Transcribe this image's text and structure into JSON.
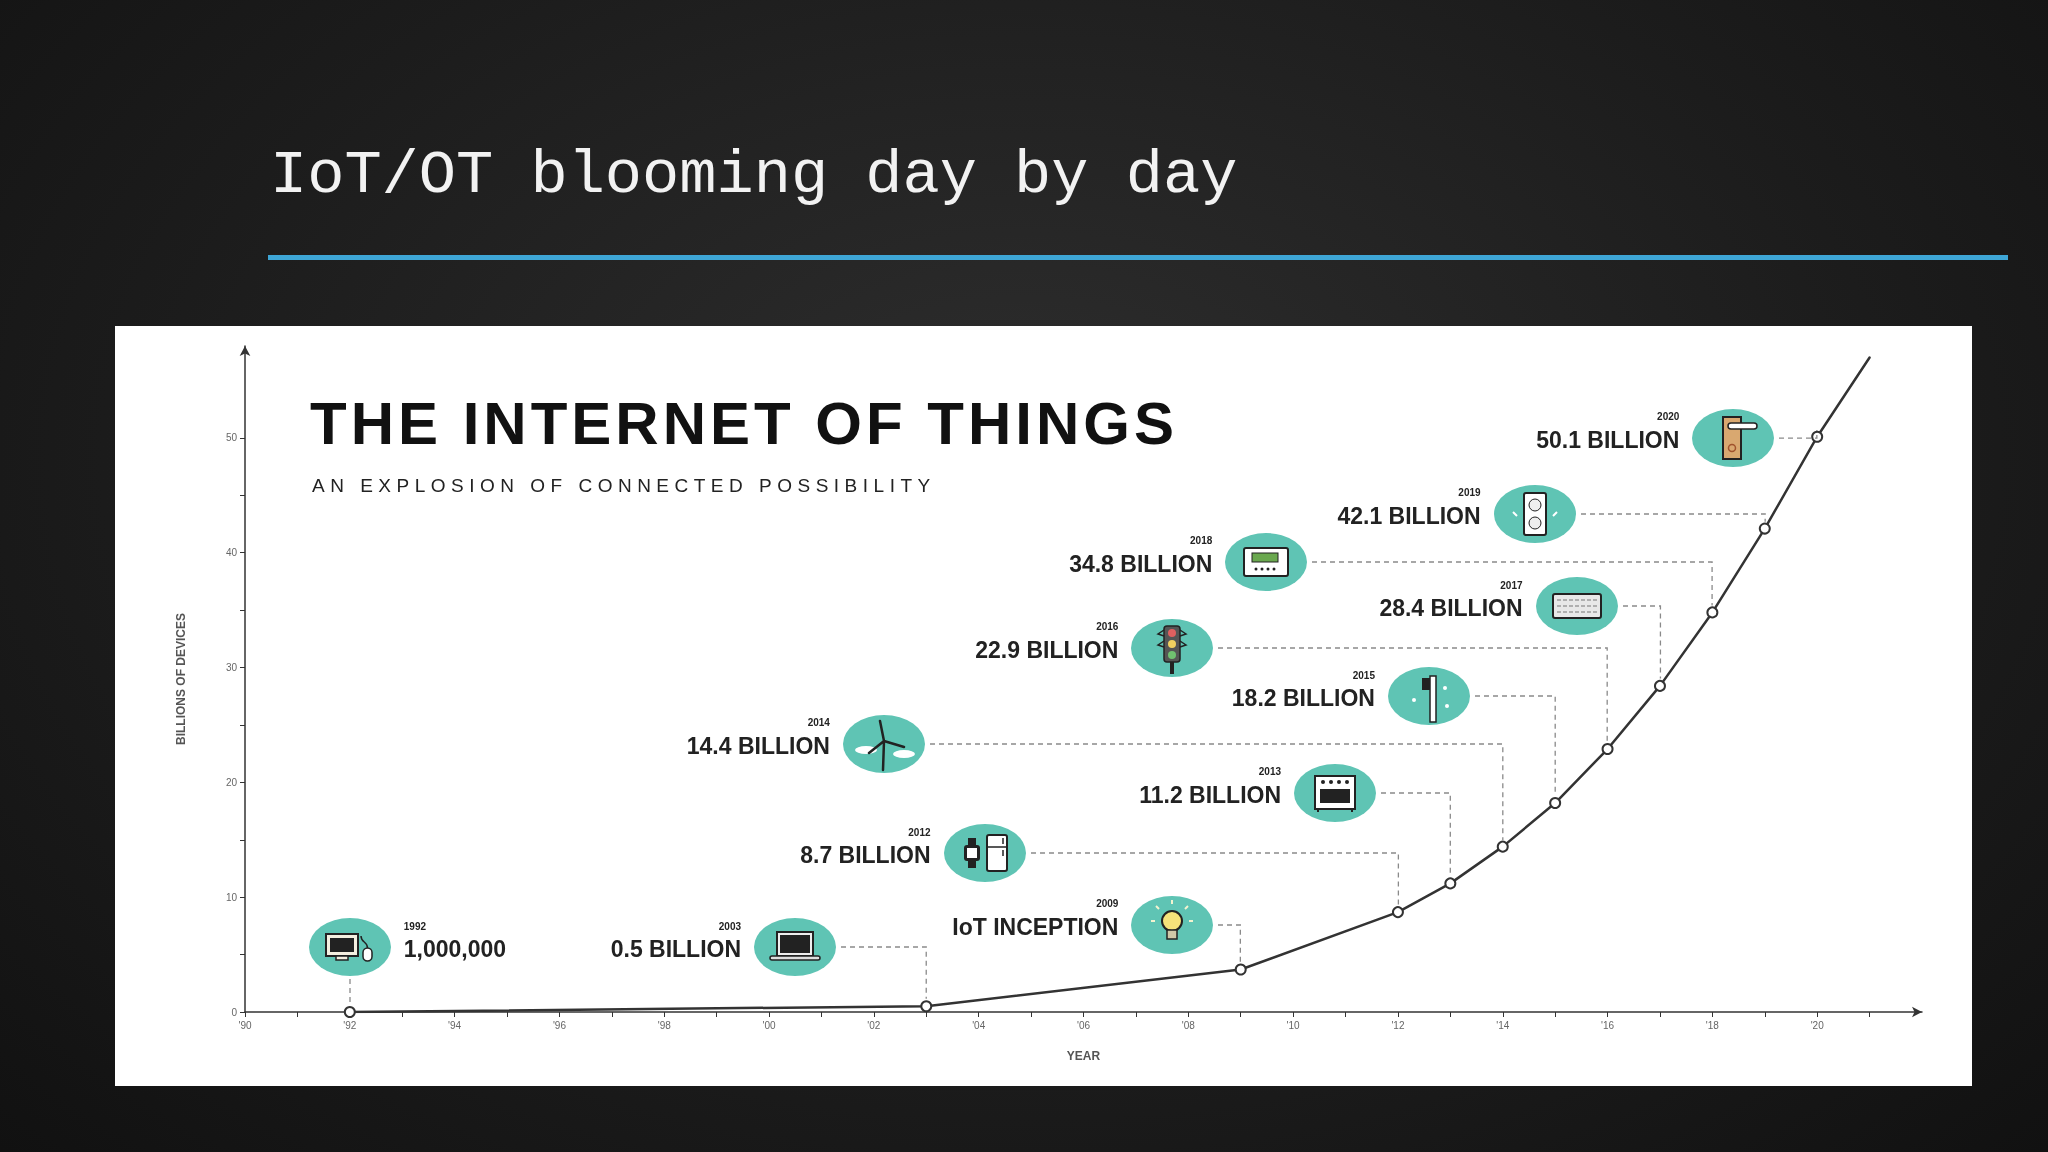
{
  "chart_data": {
    "type": "line",
    "title": "THE INTERNET OF THINGS",
    "subtitle": "AN EXPLOSION OF CONNECTED POSSIBILITY",
    "xlabel": "YEAR",
    "ylabel": "BILLIONS OF DEVICES",
    "xlim": [
      1990,
      2022
    ],
    "xticks": [
      {
        "value": 1990,
        "label": "'90"
      },
      {
        "value": 1991,
        "label": null
      },
      {
        "value": 1992,
        "label": "'92"
      },
      {
        "value": 1993,
        "label": null
      },
      {
        "value": 1994,
        "label": "'94"
      },
      {
        "value": 1995,
        "label": null
      },
      {
        "value": 1996,
        "label": "'96"
      },
      {
        "value": 1997,
        "label": null
      },
      {
        "value": 1998,
        "label": "'98"
      },
      {
        "value": 1999,
        "label": null
      },
      {
        "value": 2000,
        "label": "'00"
      },
      {
        "value": 2001,
        "label": null
      },
      {
        "value": 2002,
        "label": "'02"
      },
      {
        "value": 2003,
        "label": null
      },
      {
        "value": 2004,
        "label": "'04"
      },
      {
        "value": 2005,
        "label": null
      },
      {
        "value": 2006,
        "label": "'06"
      },
      {
        "value": 2007,
        "label": null
      },
      {
        "value": 2008,
        "label": "'08"
      },
      {
        "value": 2009,
        "label": null
      },
      {
        "value": 2010,
        "label": "'10"
      },
      {
        "value": 2011,
        "label": null
      },
      {
        "value": 2012,
        "label": "'12"
      },
      {
        "value": 2013,
        "label": null
      },
      {
        "value": 2014,
        "label": "'14"
      },
      {
        "value": 2015,
        "label": null
      },
      {
        "value": 2016,
        "label": "'16"
      },
      {
        "value": 2017,
        "label": null
      },
      {
        "value": 2018,
        "label": "'18"
      },
      {
        "value": 2019,
        "label": null
      },
      {
        "value": 2020,
        "label": "'20"
      },
      {
        "value": 2021,
        "label": null
      }
    ],
    "ylim": [
      0,
      58
    ],
    "yticks": [
      0,
      {
        "value": 5,
        "label": null
      },
      10,
      {
        "value": 15,
        "label": null
      },
      20,
      {
        "value": 25,
        "label": null
      },
      30,
      {
        "value": 35,
        "label": null
      },
      40,
      {
        "value": 45,
        "label": null
      },
      50
    ],
    "marker": "circle",
    "line_style": "solid",
    "series": [
      {
        "color": "#333333",
        "x": [
          1992,
          2003,
          2009,
          2012,
          2013,
          2014,
          2015,
          2016,
          2017,
          2018,
          2019,
          2020
        ],
        "values": [
          0.001,
          0.5,
          3.7,
          8.7,
          11.2,
          14.4,
          18.2,
          22.9,
          28.4,
          34.8,
          42.1,
          50.1
        ]
      },
      {
        "color": "#333333",
        "x": [
          2020,
          2021
        ],
        "values": [
          50.1,
          57
        ],
        "marker": "none"
      }
    ],
    "annotations": [
      "IoT/OT blooming day by day",
      "1992",
      "1,000,000",
      "2003",
      "0.5 BILLION",
      "2009",
      "IoT INCEPTION",
      "2012",
      "8.7 BILLION",
      "2013",
      "11.2 BILLION",
      "2014",
      "14.4 BILLION",
      "2015",
      "18.2 BILLION",
      "2016",
      "22.9 BILLION",
      "2017",
      "28.4 BILLION",
      "2018",
      "34.8 BILLION",
      "2019",
      "42.1 BILLION",
      "2020",
      "50.1 BILLION"
    ]
  }
}
